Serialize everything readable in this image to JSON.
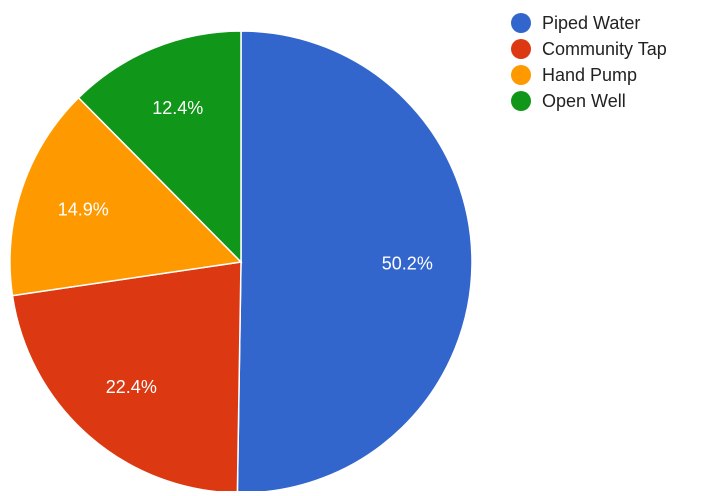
{
  "chart_data": {
    "type": "pie",
    "title": "",
    "categories": [
      "Piped Water",
      "Community Tap",
      "Hand Pump",
      "Open Well"
    ],
    "values": [
      50.2,
      22.4,
      14.9,
      12.4
    ],
    "labels": [
      "50.2%",
      "22.4%",
      "14.9%",
      "12.4%"
    ],
    "colors": [
      "#3366cc",
      "#dc3912",
      "#ff9900",
      "#109618"
    ],
    "legend_position": "top-right",
    "start_angle": "12 o'clock, clockwise"
  }
}
